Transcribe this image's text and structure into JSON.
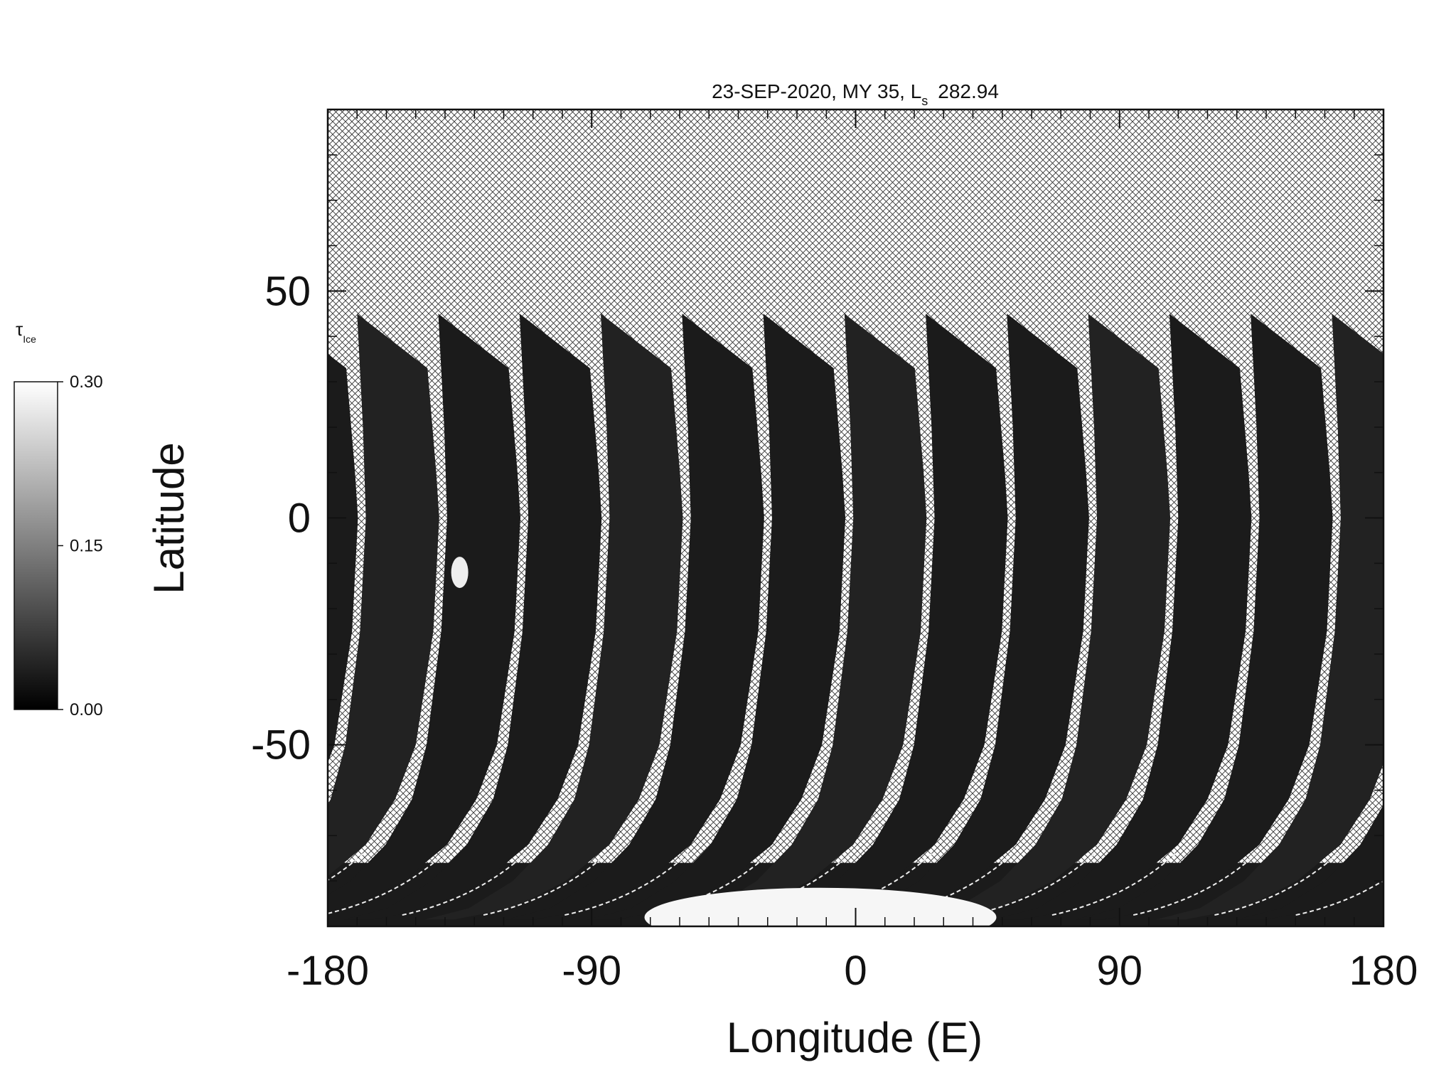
{
  "chart_data": {
    "type": "map",
    "title_prefix": "23-SEP-2020, MY 35,  L",
    "title_subscript": "s",
    "title_suffix": "282.94",
    "xlabel": "Longitude (E)",
    "ylabel": "Latitude",
    "xlim": [
      -180,
      180
    ],
    "xticks": [
      -180,
      -90,
      0,
      90,
      180
    ],
    "xminor_step": 10,
    "ylim": [
      -90,
      90
    ],
    "yticks": [
      -50,
      0,
      50
    ],
    "yminor_step": 10,
    "colorbar": {
      "label": "τ",
      "label_subscript": "Ice",
      "lim": [
        0,
        0.3
      ],
      "colors": [
        "#000000",
        "#ffffff"
      ],
      "ticks": [
        {
          "value": 0,
          "label": "0.00"
        },
        {
          "value": 0.15,
          "label": "0.15"
        },
        {
          "value": 0.3,
          "label": "0.30"
        }
      ]
    }
  }
}
